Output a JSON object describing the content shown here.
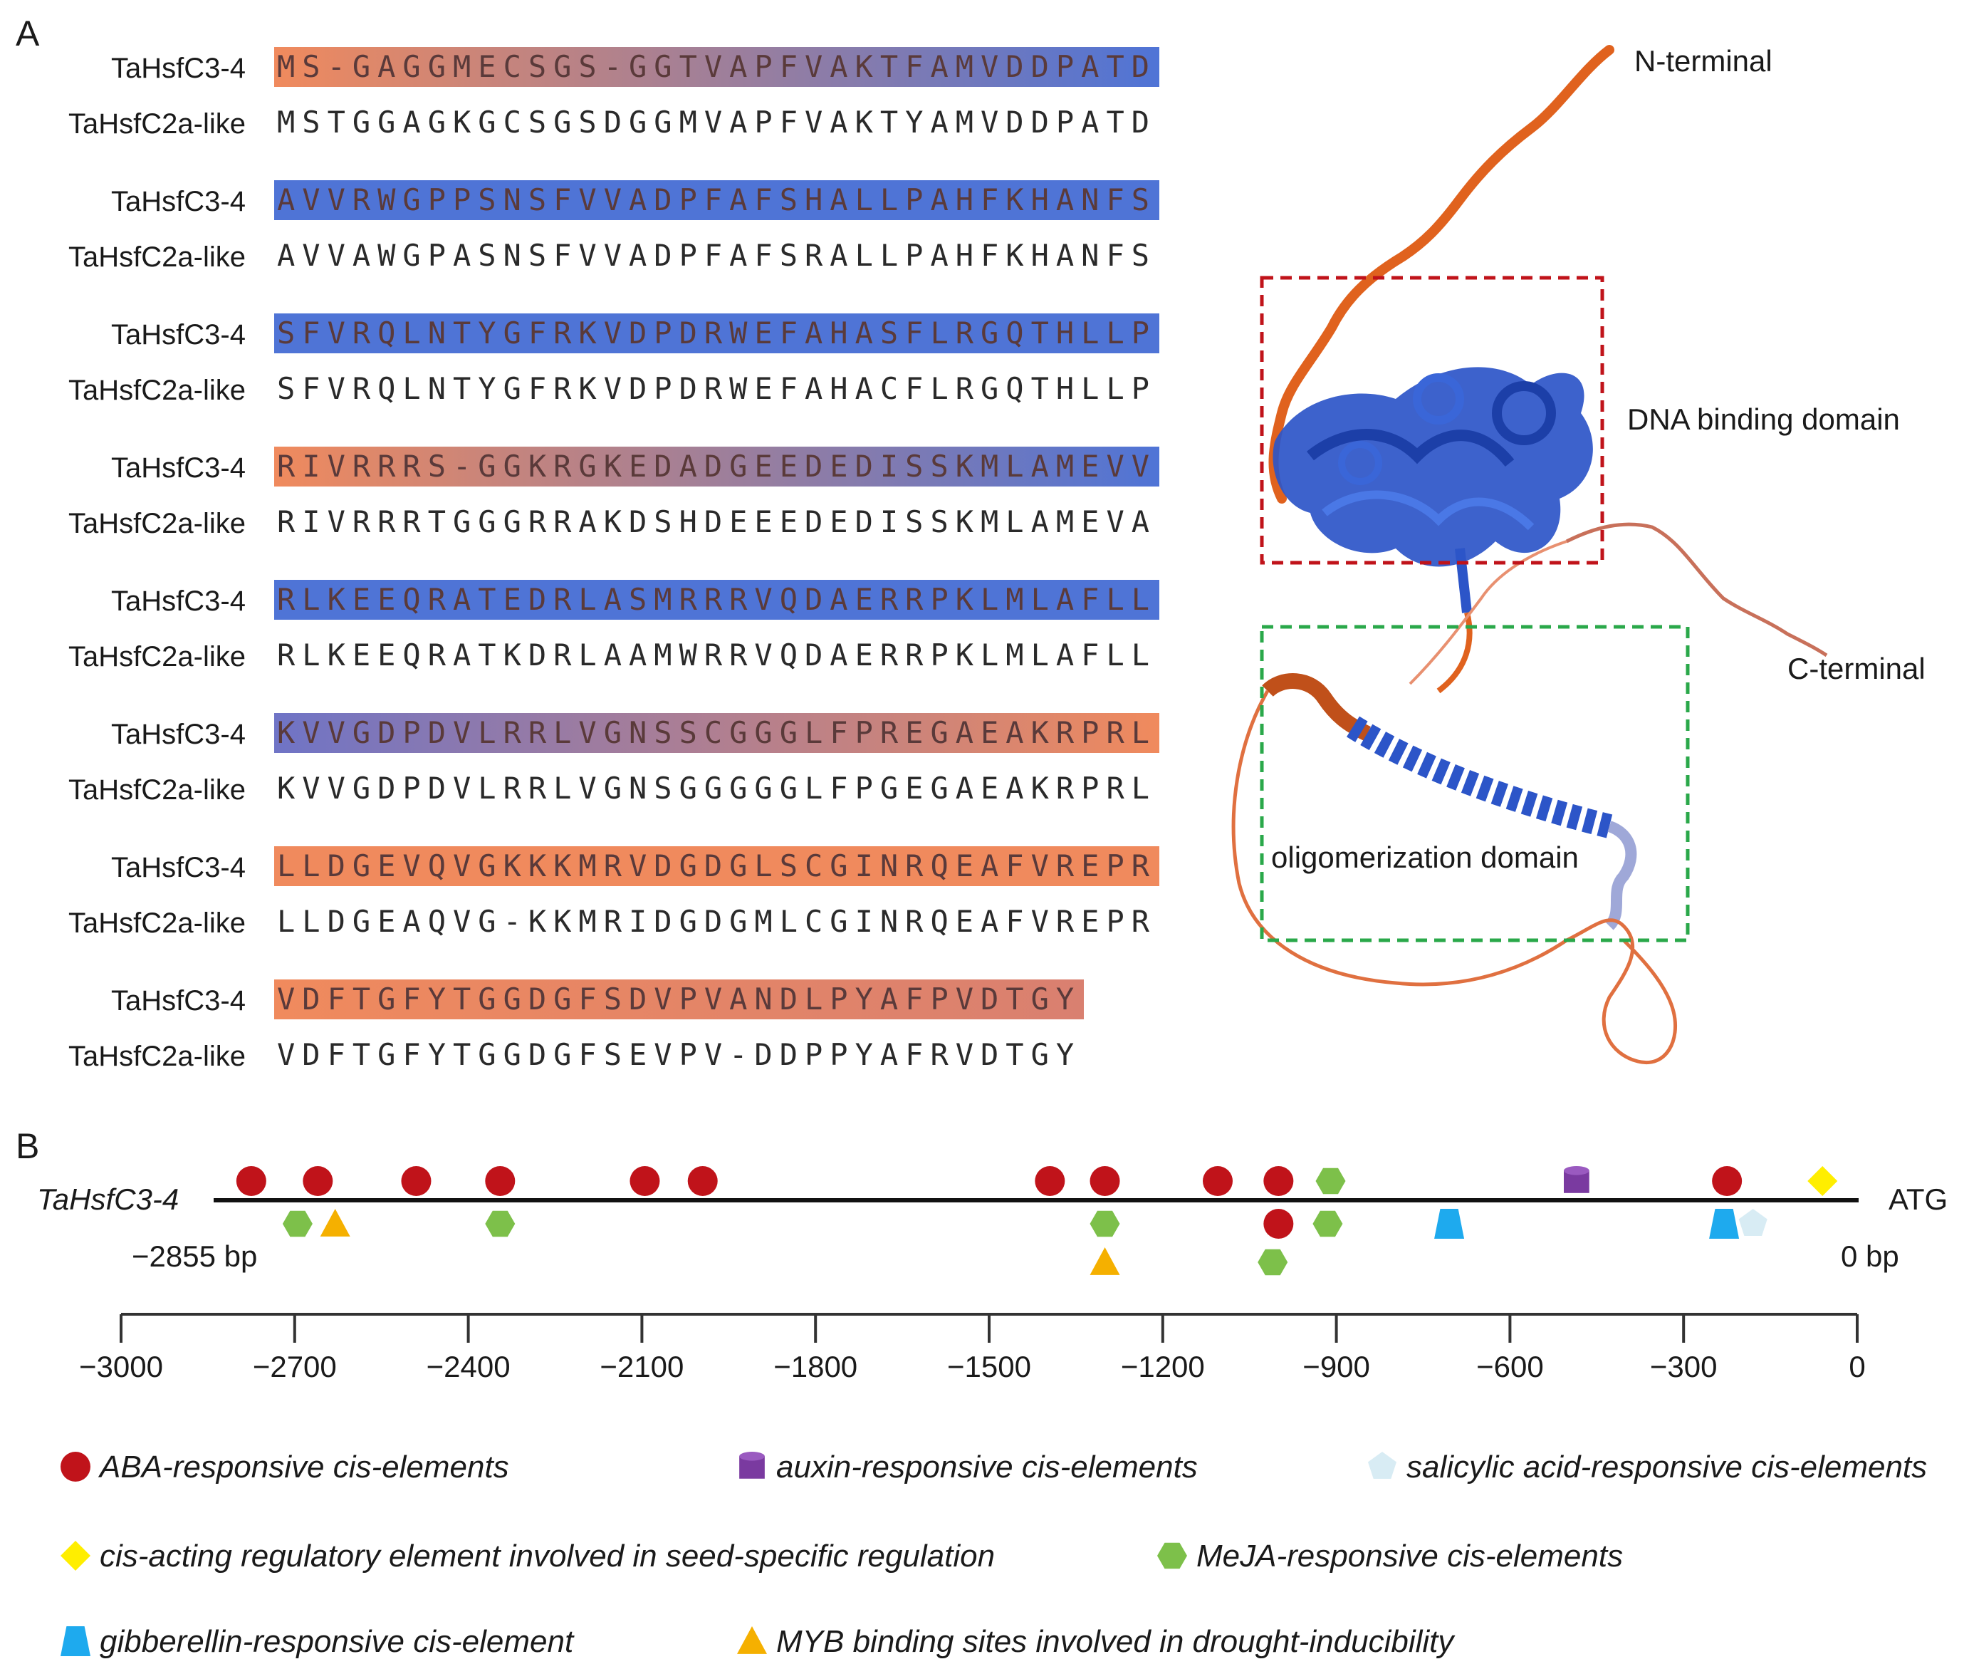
{
  "panelA": {
    "label": "A",
    "sequence_a_name": "TaHsfC3-4",
    "sequence_b_name": "TaHsfC2a-like",
    "rows": [
      {
        "a": "MS-GAGGMECSGS-GGTVAPFVAKTFAMVDDPATD",
        "b": "MSTGGAGKGCSGSDGGMVAPFVAKTYAMVDDPATD",
        "c1": "#f08a5d",
        "c2": "#4f74d6"
      },
      {
        "a": "AVVRWGPPSNSFVVADPFAFSHALLPAHFKHANFS",
        "b": "AVVAWGPASNSFVVADPFAFSRALLPAHFKHANFS",
        "c1": "#4f74d6",
        "c2": "#4f74d6"
      },
      {
        "a": "SFVRQLNTYGFRKVDPDRWEFAHASFLRGQTHLLP",
        "b": "SFVRQLNTYGFRKVDPDRWEFAHACFLRGQTHLLP",
        "c1": "#4f74d6",
        "c2": "#4f74d6"
      },
      {
        "a": "RIVRRRS-GGKRGKEDADGEEDEDISSKMLAMEVV",
        "b": "RIVRRRTGGGRRAKDSHDEEEDEDISSKMLAMEVA",
        "c1": "#f08a5d",
        "c2": "#4f74d6"
      },
      {
        "a": "RLKEEQRATEDRLASMRRRVQDAERRPKLMLAFLL",
        "b": "RLKEEQRATKDRLAAMWRRVQDAERRPKLMLAFLL",
        "c1": "#4f74d6",
        "c2": "#4f74d6"
      },
      {
        "a": "KVVGDPDVLRRLVGNSSCGGGLFPREGAEAKRPRL",
        "b": "KVVGDPDVLRRLVGNSGGGGGLFPGEGAEAKRPRL",
        "c1": "#6f74c6",
        "c2": "#f08a5d"
      },
      {
        "a": "LLDGEVQVGKKKMRVDGDGLSCGINRQEAFVREPR",
        "b": "LLDGEAQVG-KKMRIDGDGMLCGINRQEAFVREPR",
        "c1": "#f08a5d",
        "c2": "#f08a5d"
      },
      {
        "a": "VDFTGFYTGGDGFSDVPVANDLPYAFPVDTGY",
        "b": "VDFTGFYTGGDGFSEVPV-DDPPYAFRVDTGY",
        "c1": "#f08a5d",
        "c2": "#d98070"
      }
    ],
    "structure_labels": {
      "n_terminal": "N-terminal",
      "c_terminal": "C-terminal",
      "dna_binding": "DNA binding domain",
      "oligomerization": "oligomerization domain"
    }
  },
  "panelB": {
    "label": "B",
    "gene_name": "TaHsfC3-4",
    "atg_label": "ATG",
    "start_label": "−2855 bp",
    "end_label": "0 bp",
    "axis": {
      "min": -3000,
      "max": 0,
      "ticks": [
        -3000,
        -2700,
        -2400,
        -2100,
        -1800,
        -1500,
        -1200,
        -900,
        -600,
        -300,
        0
      ],
      "tick_labels": [
        "−3000",
        "−2700",
        "−2400",
        "−2100",
        "−1800",
        "−1500",
        "−1200",
        "−900",
        "−600",
        "−300",
        "0"
      ]
    },
    "elements": [
      {
        "type": "ABA",
        "pos": -2775,
        "row": 1
      },
      {
        "type": "ABA",
        "pos": -2660,
        "row": 1
      },
      {
        "type": "ABA",
        "pos": -2490,
        "row": 1
      },
      {
        "type": "ABA",
        "pos": -2345,
        "row": 1
      },
      {
        "type": "ABA",
        "pos": -2095,
        "row": 1
      },
      {
        "type": "ABA",
        "pos": -1995,
        "row": 1
      },
      {
        "type": "ABA",
        "pos": -1395,
        "row": 1
      },
      {
        "type": "ABA",
        "pos": -1300,
        "row": 1
      },
      {
        "type": "ABA",
        "pos": -1105,
        "row": 1
      },
      {
        "type": "ABA",
        "pos": -1000,
        "row": 1
      },
      {
        "type": "MeJA",
        "pos": -910,
        "row": 1
      },
      {
        "type": "auxin",
        "pos": -485,
        "row": 1
      },
      {
        "type": "ABA",
        "pos": -225,
        "row": 1
      },
      {
        "type": "seed",
        "pos": -60,
        "row": 1
      },
      {
        "type": "MeJA",
        "pos": -2695,
        "row": -1
      },
      {
        "type": "MYB",
        "pos": -2630,
        "row": -1
      },
      {
        "type": "MeJA",
        "pos": -2345,
        "row": -1
      },
      {
        "type": "MeJA",
        "pos": -1300,
        "row": -1
      },
      {
        "type": "ABA",
        "pos": -1000,
        "row": -1
      },
      {
        "type": "MeJA",
        "pos": -915,
        "row": -1
      },
      {
        "type": "GA",
        "pos": -705,
        "row": -1
      },
      {
        "type": "GA",
        "pos": -230,
        "row": -1
      },
      {
        "type": "SA",
        "pos": -180,
        "row": -1
      },
      {
        "type": "MYB",
        "pos": -1300,
        "row": -2
      },
      {
        "type": "MeJA",
        "pos": -1010,
        "row": -2
      }
    ],
    "legend": [
      {
        "key": "ABA",
        "label": "ABA-responsive cis-elements",
        "color": "#c0131a"
      },
      {
        "key": "auxin",
        "label": "auxin-responsive cis-elements",
        "color": "#7a3aa0"
      },
      {
        "key": "SA",
        "label": "salicylic acid-responsive cis-elements",
        "color": "#d8ecf4"
      },
      {
        "key": "seed",
        "label": "cis-acting regulatory element involved in seed-specific regulation",
        "color": "#ffee00"
      },
      {
        "key": "MeJA",
        "label": "MeJA-responsive cis-elements",
        "color": "#7dc04a"
      },
      {
        "key": "GA",
        "label": "gibberellin-responsive cis-element",
        "color": "#1eaaee"
      },
      {
        "key": "MYB",
        "label": "MYB binding sites involved in drought-inducibility",
        "color": "#f5b000"
      }
    ]
  }
}
